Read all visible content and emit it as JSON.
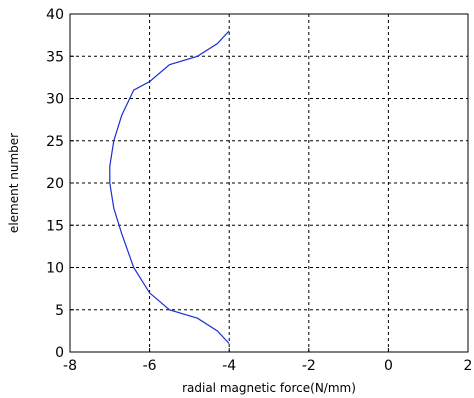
{
  "chart_data": {
    "type": "line",
    "title": "",
    "xlabel": "radial magnetic force(N/mm)",
    "ylabel": "element number",
    "xlim": [
      -8,
      2
    ],
    "ylim": [
      0,
      40
    ],
    "x_ticks": [
      -8,
      -6,
      -4,
      -2,
      0,
      2
    ],
    "y_ticks": [
      0,
      5,
      10,
      15,
      20,
      25,
      30,
      35,
      40
    ],
    "grid": "dashed",
    "series": [
      {
        "color": "#1a2fd8",
        "x": [
          -4.0,
          -4.3,
          -4.8,
          -5.5,
          -6.0,
          -6.4,
          -6.7,
          -6.9,
          -7.0,
          -7.0,
          -6.9,
          -6.7,
          -6.4,
          -6.0,
          -5.5,
          -4.8,
          -4.3,
          -4.0
        ],
        "y": [
          1,
          2.5,
          4,
          5,
          7,
          10,
          14,
          17,
          20,
          22,
          25,
          28,
          31,
          32,
          34,
          35,
          36.5,
          38
        ]
      }
    ]
  }
}
